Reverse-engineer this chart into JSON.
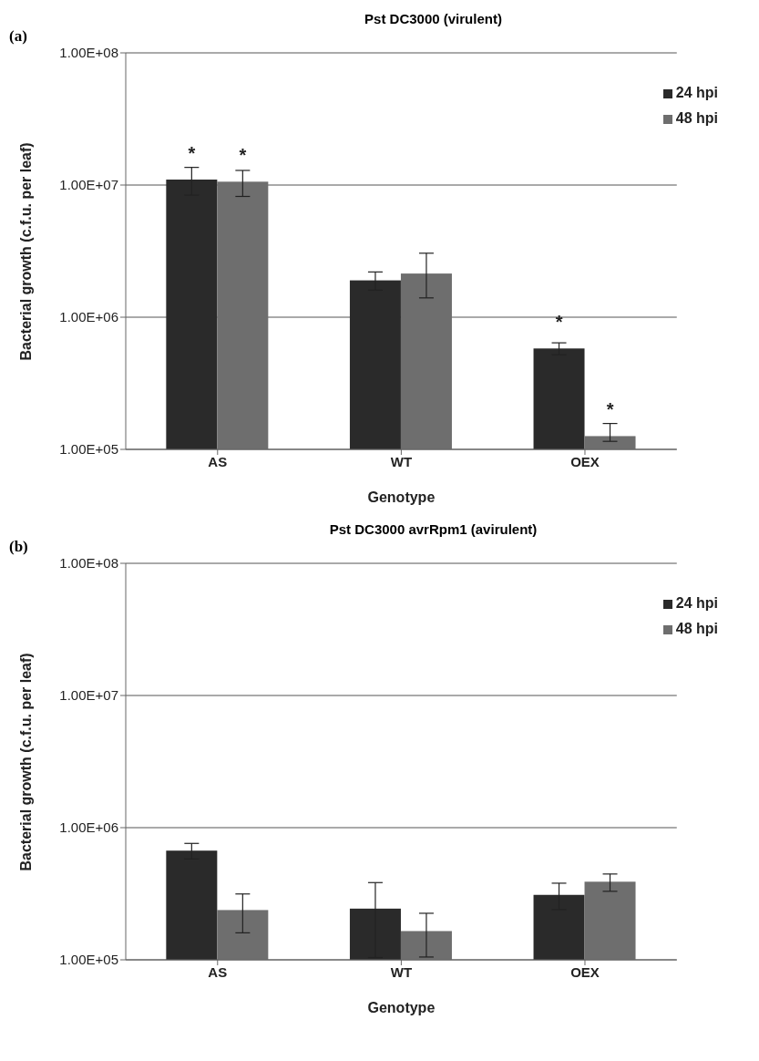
{
  "chart_data": [
    {
      "type": "bar",
      "title": "Pst DC3000 (virulent)",
      "xlabel": "Genotype",
      "ylabel": "Bacterial growth (c.f.u. per leaf)",
      "annotations": [
        "(a)"
      ],
      "categories": [
        "AS",
        "WT",
        "OEX"
      ],
      "series": [
        {
          "name": "24 hpi",
          "color": "#2a2a2a",
          "values": [
            11000000,
            1900000,
            580000
          ],
          "errors": [
            2600000,
            300000,
            60000
          ],
          "value_labels": [
            "*",
            null,
            "*"
          ]
        },
        {
          "name": "48 hpi",
          "color": "#6e6e6e",
          "values": [
            10600000,
            2140000,
            126000
          ],
          "errors": [
            [
              8200000,
              12900000
            ],
            [
              1400000,
              3050000
            ],
            [
              115000,
              157000
            ]
          ],
          "value_labels": [
            "*",
            null,
            "*"
          ]
        }
      ],
      "log": true,
      "ylim": [
        100000,
        100000000
      ],
      "yticks": [
        {
          "value": 100000,
          "label": "1.00E+05"
        },
        {
          "value": 1000000,
          "label": "1.00E+06"
        },
        {
          "value": 10000000,
          "label": "1.00E+07"
        },
        {
          "value": 100000000,
          "label": "1.00E+08"
        }
      ],
      "grid": "y",
      "legend": "top right"
    },
    {
      "type": "bar",
      "title": "Pst DC3000 avrRpm1 (avirulent)",
      "xlabel": "Genotype",
      "ylabel": "Bacterial growth (c.f.u. per leaf)",
      "annotations": [
        "(b)"
      ],
      "categories": [
        "AS",
        "WT",
        "OEX"
      ],
      "series": [
        {
          "name": "24 hpi",
          "color": "#2a2a2a",
          "values": [
            670000,
            244000,
            310000
          ],
          "errors": [
            90000,
            140000,
            70000
          ]
        },
        {
          "name": "48 hpi",
          "color": "#6e6e6e",
          "values": [
            238000,
            165000,
            390000
          ],
          "errors": [
            [
              160000,
              315000
            ],
            60000,
            [
              330000,
              446000
            ]
          ]
        }
      ],
      "log": true,
      "ylim": [
        100000,
        100000000
      ],
      "yticks": [
        {
          "value": 100000,
          "label": "1.00E+05"
        },
        {
          "value": 1000000,
          "label": "1.00E+06"
        },
        {
          "value": 10000000,
          "label": "1.00E+07"
        },
        {
          "value": 100000000,
          "label": "1.00E+08"
        }
      ],
      "grid": "y",
      "legend": "top right"
    }
  ]
}
